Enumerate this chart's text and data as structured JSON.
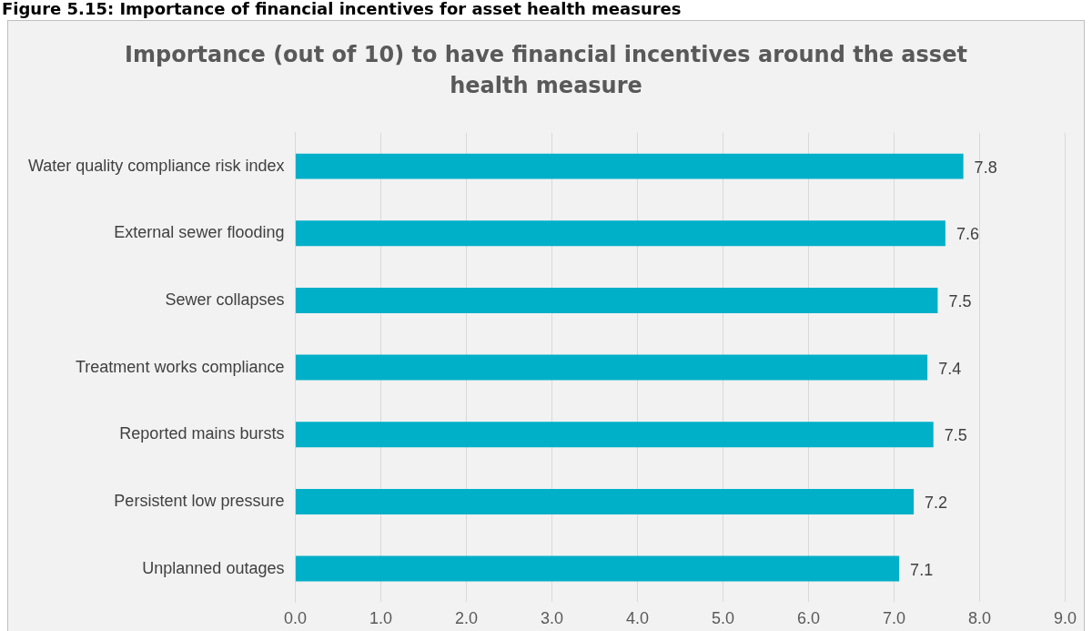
{
  "chart_data": {
    "type": "bar",
    "orientation": "horizontal",
    "title": "Importance (out of 10) to have financial incentives around the asset health measure",
    "annotations": [
      "Figure 5.15: Importance of financial incentives for asset health measures"
    ],
    "categories": [
      "Water quality compliance risk index",
      "External sewer flooding",
      "Sewer collapses",
      "Treatment works compliance",
      "Reported mains bursts",
      "Persistent low pressure",
      "Unplanned outages"
    ],
    "values": [
      7.81,
      7.6,
      7.51,
      7.39,
      7.46,
      7.23,
      7.06
    ],
    "value_labels": [
      "7.8",
      "7.6",
      "7.5",
      "7.4",
      "7.5",
      "7.2",
      "7.1"
    ],
    "color": "#00afc8",
    "xlim": [
      0,
      9
    ],
    "xticks": [
      {
        "value": 0,
        "label": "0.0"
      },
      {
        "value": 1,
        "label": "1.0"
      },
      {
        "value": 2,
        "label": "2.0"
      },
      {
        "value": 3,
        "label": "3.0"
      },
      {
        "value": 4,
        "label": "4.0"
      },
      {
        "value": 5,
        "label": "5.0"
      },
      {
        "value": 6,
        "label": "6.0"
      },
      {
        "value": 7,
        "label": "7.0"
      },
      {
        "value": 8,
        "label": "8.0"
      },
      {
        "value": 9,
        "label": "9.0"
      }
    ],
    "grid": "x",
    "legend": false
  }
}
